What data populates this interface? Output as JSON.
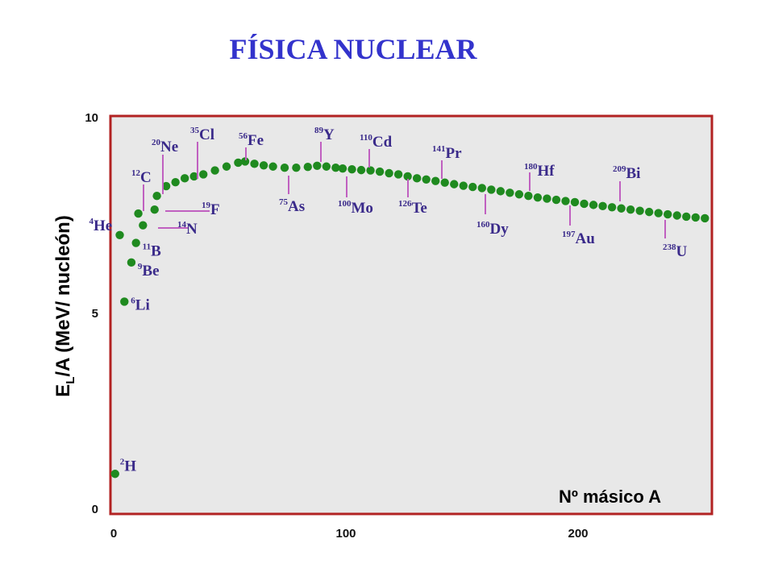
{
  "slide": {
    "title": "FÍSICA NUCLEAR"
  },
  "colors": {
    "frame": "#b22222",
    "plot_bg": "#e8e8e8",
    "points": "#1f8a1f",
    "leader": "#c060c0",
    "labels": "#3a2a8a",
    "title": "#3333cc"
  },
  "chart_data": {
    "type": "scatter",
    "title": "",
    "xlabel": "Nº másico A",
    "ylabel": {
      "main": "E",
      "sub": "L",
      "rest": "/A  (MeV/ nucleón)"
    },
    "xlim": [
      0,
      260
    ],
    "ylim": [
      0,
      10
    ],
    "xticks": [
      {
        "value": 0,
        "label": "0"
      },
      {
        "value": 100,
        "label": "100"
      },
      {
        "value": 200,
        "label": "200"
      }
    ],
    "yticks": [
      {
        "value": 0,
        "label": "0"
      },
      {
        "value": 5,
        "label": "5"
      },
      {
        "value": 10,
        "label": "10"
      }
    ],
    "grid": false,
    "legend": "none",
    "series": [
      {
        "points": [
          [
            2,
            0.9
          ],
          [
            4,
            7.0
          ],
          [
            6,
            5.3
          ],
          [
            9,
            6.3
          ],
          [
            11,
            6.8
          ],
          [
            12,
            7.55
          ],
          [
            14,
            7.25
          ],
          [
            19,
            7.65
          ],
          [
            20,
            8.0
          ],
          [
            24,
            8.25
          ],
          [
            28,
            8.35
          ],
          [
            32,
            8.45
          ],
          [
            36,
            8.5
          ],
          [
            40,
            8.55
          ],
          [
            45,
            8.65
          ],
          [
            50,
            8.75
          ],
          [
            55,
            8.85
          ],
          [
            58,
            8.88
          ],
          [
            62,
            8.82
          ],
          [
            66,
            8.78
          ],
          [
            70,
            8.75
          ],
          [
            75,
            8.72
          ],
          [
            80,
            8.72
          ],
          [
            85,
            8.74
          ],
          [
            89,
            8.77
          ],
          [
            93,
            8.75
          ],
          [
            97,
            8.72
          ],
          [
            100,
            8.7
          ],
          [
            104,
            8.68
          ],
          [
            108,
            8.66
          ],
          [
            112,
            8.65
          ],
          [
            116,
            8.62
          ],
          [
            120,
            8.58
          ],
          [
            124,
            8.55
          ],
          [
            128,
            8.5
          ],
          [
            132,
            8.45
          ],
          [
            136,
            8.42
          ],
          [
            140,
            8.38
          ],
          [
            144,
            8.34
          ],
          [
            148,
            8.3
          ],
          [
            152,
            8.26
          ],
          [
            156,
            8.23
          ],
          [
            160,
            8.2
          ],
          [
            164,
            8.16
          ],
          [
            168,
            8.12
          ],
          [
            172,
            8.08
          ],
          [
            176,
            8.04
          ],
          [
            180,
            8.0
          ],
          [
            184,
            7.96
          ],
          [
            188,
            7.93
          ],
          [
            192,
            7.9
          ],
          [
            196,
            7.87
          ],
          [
            200,
            7.84
          ],
          [
            204,
            7.8
          ],
          [
            208,
            7.77
          ],
          [
            212,
            7.74
          ],
          [
            216,
            7.71
          ],
          [
            220,
            7.68
          ],
          [
            224,
            7.65
          ],
          [
            228,
            7.62
          ],
          [
            232,
            7.59
          ],
          [
            236,
            7.56
          ],
          [
            240,
            7.53
          ],
          [
            244,
            7.5
          ],
          [
            248,
            7.47
          ],
          [
            252,
            7.45
          ],
          [
            256,
            7.43
          ]
        ]
      }
    ],
    "annotations": [
      {
        "mass": "2",
        "symbol": "H",
        "x": 2,
        "y": 0.9
      },
      {
        "mass": "4",
        "symbol": "He",
        "x": 4,
        "y": 7.0
      },
      {
        "mass": "6",
        "symbol": "Li",
        "x": 6,
        "y": 5.3
      },
      {
        "mass": "9",
        "symbol": "Be",
        "x": 9,
        "y": 6.3
      },
      {
        "mass": "11",
        "symbol": "B",
        "x": 11,
        "y": 6.8
      },
      {
        "mass": "12",
        "symbol": "C",
        "x": 12,
        "y": 7.55
      },
      {
        "mass": "14",
        "symbol": "N",
        "x": 14,
        "y": 7.25
      },
      {
        "mass": "19",
        "symbol": "F",
        "x": 19,
        "y": 7.65
      },
      {
        "mass": "20",
        "symbol": "Ne",
        "x": 20,
        "y": 8.0
      },
      {
        "mass": "35",
        "symbol": "Cl",
        "x": 36,
        "y": 8.5
      },
      {
        "mass": "56",
        "symbol": "Fe",
        "x": 58,
        "y": 8.88
      },
      {
        "mass": "75",
        "symbol": "As",
        "x": 75,
        "y": 8.72
      },
      {
        "mass": "89",
        "symbol": "Y",
        "x": 89,
        "y": 8.77
      },
      {
        "mass": "100",
        "symbol": "Mo",
        "x": 100,
        "y": 8.7
      },
      {
        "mass": "110",
        "symbol": "Cd",
        "x": 112,
        "y": 8.65
      },
      {
        "mass": "126",
        "symbol": "Te",
        "x": 126,
        "y": 8.52
      },
      {
        "mass": "141",
        "symbol": "Pr",
        "x": 142,
        "y": 8.36
      },
      {
        "mass": "160",
        "symbol": "Dy",
        "x": 160,
        "y": 8.2
      },
      {
        "mass": "180",
        "symbol": "Hf",
        "x": 180,
        "y": 8.0
      },
      {
        "mass": "197",
        "symbol": "Au",
        "x": 196,
        "y": 7.87
      },
      {
        "mass": "209",
        "symbol": "Bi",
        "x": 222,
        "y": 7.66
      },
      {
        "mass": "238",
        "symbol": "U",
        "x": 240,
        "y": 7.53
      }
    ]
  }
}
